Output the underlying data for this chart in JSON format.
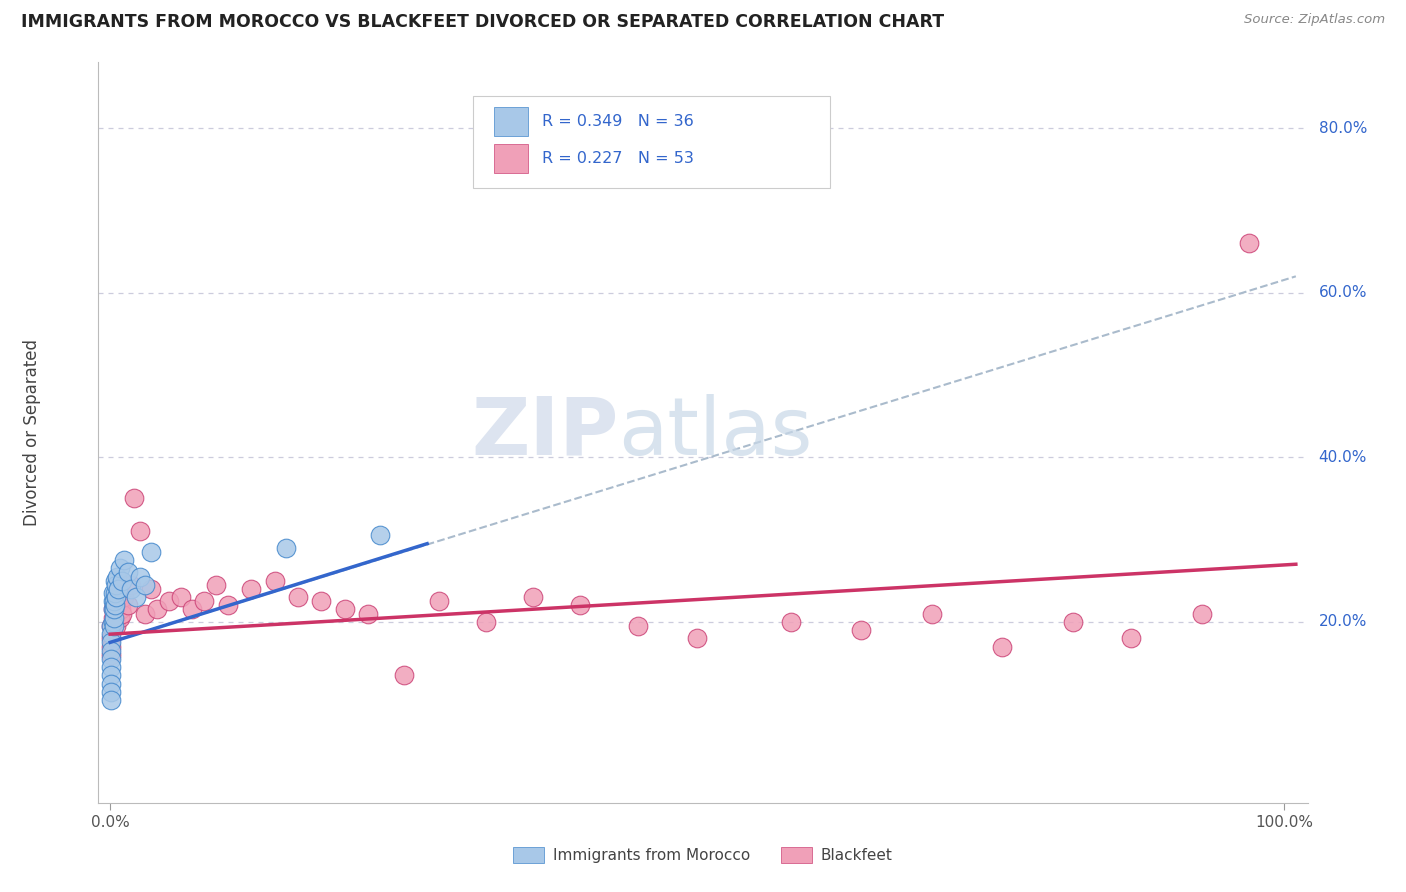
{
  "title": "IMMIGRANTS FROM MOROCCO VS BLACKFEET DIVORCED OR SEPARATED CORRELATION CHART",
  "source": "Source: ZipAtlas.com",
  "ylabel": "Divorced or Separated",
  "ytick_vals": [
    0.2,
    0.4,
    0.6,
    0.8
  ],
  "ytick_labels": [
    "20.0%",
    "40.0%",
    "60.0%",
    "80.0%"
  ],
  "xtick_vals": [
    0.0,
    1.0
  ],
  "xtick_labels": [
    "0.0%",
    "100.0%"
  ],
  "legend_r_color": "#3366cc",
  "legend1_label": "R = 0.349   N = 36",
  "legend2_label": "R = 0.227   N = 53",
  "watermark_zip": "ZIP",
  "watermark_atlas": "atlas",
  "series1_color": "#a8c8e8",
  "series1_edge": "#4488cc",
  "series2_color": "#f0a0b8",
  "series2_edge": "#cc4477",
  "trendline1_color": "#3366cc",
  "trendline2_color": "#cc3366",
  "dashed_color": "#aabbcc",
  "background_color": "#ffffff",
  "grid_color": "#ccccdd",
  "xlim": [
    -0.01,
    1.02
  ],
  "ylim": [
    -0.02,
    0.88
  ],
  "series1_x": [
    0.001,
    0.001,
    0.001,
    0.001,
    0.001,
    0.001,
    0.001,
    0.001,
    0.001,
    0.001,
    0.002,
    0.002,
    0.002,
    0.002,
    0.003,
    0.003,
    0.003,
    0.003,
    0.004,
    0.004,
    0.004,
    0.005,
    0.005,
    0.006,
    0.007,
    0.008,
    0.01,
    0.012,
    0.015,
    0.018,
    0.022,
    0.025,
    0.03,
    0.035,
    0.15,
    0.23
  ],
  "series1_y": [
    0.195,
    0.185,
    0.175,
    0.165,
    0.155,
    0.145,
    0.135,
    0.125,
    0.115,
    0.105,
    0.2,
    0.215,
    0.225,
    0.235,
    0.195,
    0.205,
    0.215,
    0.225,
    0.22,
    0.235,
    0.25,
    0.23,
    0.245,
    0.255,
    0.24,
    0.265,
    0.25,
    0.275,
    0.26,
    0.24,
    0.23,
    0.255,
    0.245,
    0.285,
    0.29,
    0.305
  ],
  "series2_x": [
    0.001,
    0.001,
    0.001,
    0.001,
    0.002,
    0.002,
    0.003,
    0.003,
    0.004,
    0.004,
    0.005,
    0.005,
    0.006,
    0.006,
    0.007,
    0.008,
    0.009,
    0.01,
    0.012,
    0.015,
    0.018,
    0.02,
    0.025,
    0.03,
    0.035,
    0.04,
    0.05,
    0.06,
    0.07,
    0.08,
    0.09,
    0.1,
    0.12,
    0.14,
    0.16,
    0.18,
    0.2,
    0.22,
    0.25,
    0.28,
    0.32,
    0.36,
    0.4,
    0.45,
    0.5,
    0.58,
    0.64,
    0.7,
    0.76,
    0.82,
    0.87,
    0.93,
    0.97
  ],
  "series2_y": [
    0.195,
    0.18,
    0.17,
    0.16,
    0.205,
    0.215,
    0.2,
    0.22,
    0.215,
    0.23,
    0.195,
    0.225,
    0.21,
    0.24,
    0.22,
    0.205,
    0.215,
    0.21,
    0.23,
    0.22,
    0.245,
    0.35,
    0.31,
    0.21,
    0.24,
    0.215,
    0.225,
    0.23,
    0.215,
    0.225,
    0.245,
    0.22,
    0.24,
    0.25,
    0.23,
    0.225,
    0.215,
    0.21,
    0.135,
    0.225,
    0.2,
    0.23,
    0.22,
    0.195,
    0.18,
    0.2,
    0.19,
    0.21,
    0.17,
    0.2,
    0.18,
    0.21,
    0.66
  ],
  "trend1_x0": 0.0,
  "trend1_x1": 0.27,
  "trend1_y0": 0.175,
  "trend1_y1": 0.295,
  "trend1_dash_x0": 0.0,
  "trend1_dash_x1": 1.01,
  "trend1_dash_y0": 0.175,
  "trend1_dash_y1": 0.62,
  "trend2_x0": 0.0,
  "trend2_x1": 1.01,
  "trend2_y0": 0.185,
  "trend2_y1": 0.27
}
